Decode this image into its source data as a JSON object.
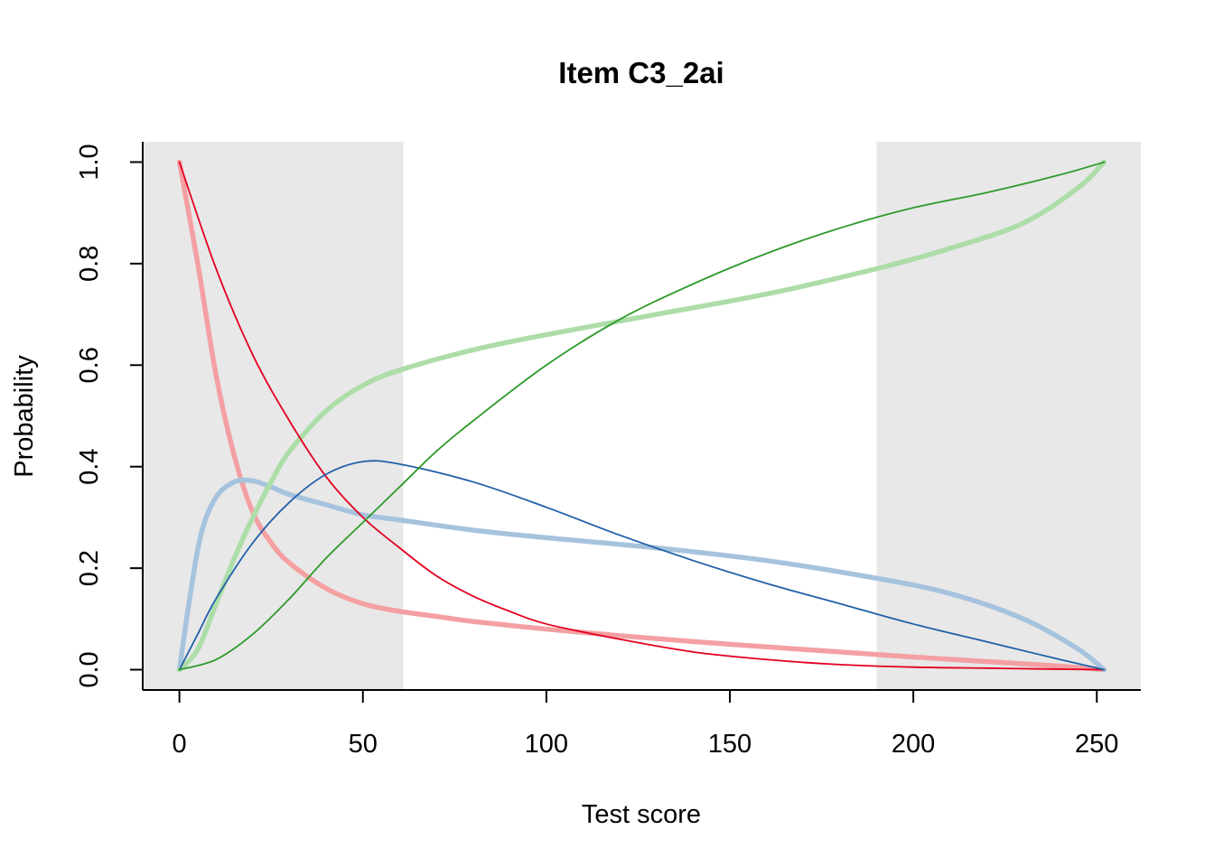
{
  "chart_data": {
    "type": "line",
    "title": "Item C3_2ai",
    "xlabel": "Test score",
    "ylabel": "Probability",
    "xlim": [
      -10,
      262
    ],
    "ylim": [
      -0.04,
      1.04
    ],
    "x_ticks": [
      0,
      50,
      100,
      150,
      200,
      250
    ],
    "y_ticks": [
      0.0,
      0.2,
      0.4,
      0.6,
      0.8,
      1.0
    ],
    "x_tick_labels": [
      "0",
      "50",
      "100",
      "150",
      "200",
      "250"
    ],
    "y_tick_labels": [
      "0.0",
      "0.2",
      "0.4",
      "0.6",
      "0.8",
      "1.0"
    ],
    "shaded_regions": [
      {
        "x_start": -10,
        "x_end": 61,
        "color": "#e8e8e8"
      },
      {
        "x_start": 190,
        "x_end": 262,
        "color": "#e8e8e8"
      }
    ],
    "series": [
      {
        "color": "#f4a0a3",
        "width": "thick",
        "x": [
          0,
          5,
          10,
          15,
          20,
          25,
          30,
          40,
          50,
          60,
          70,
          80,
          100,
          120,
          150,
          180,
          200,
          220,
          240,
          252
        ],
        "y": [
          1.0,
          0.8,
          0.58,
          0.42,
          0.31,
          0.25,
          0.21,
          0.16,
          0.13,
          0.115,
          0.105,
          0.095,
          0.08,
          0.067,
          0.05,
          0.035,
          0.025,
          0.016,
          0.007,
          0.0
        ]
      },
      {
        "color": "#a6c3de",
        "width": "thick",
        "x": [
          0,
          3,
          6,
          10,
          15,
          20,
          25,
          30,
          40,
          50,
          60,
          80,
          100,
          130,
          160,
          190,
          210,
          230,
          245,
          252
        ],
        "y": [
          0.0,
          0.15,
          0.27,
          0.34,
          0.37,
          0.372,
          0.36,
          0.345,
          0.325,
          0.305,
          0.295,
          0.275,
          0.26,
          0.24,
          0.215,
          0.18,
          0.15,
          0.1,
          0.04,
          0.0
        ]
      },
      {
        "color": "#addda8",
        "width": "thick",
        "x": [
          0,
          5,
          10,
          15,
          20,
          25,
          30,
          40,
          50,
          60,
          80,
          100,
          130,
          160,
          190,
          210,
          230,
          245,
          252
        ],
        "y": [
          0.0,
          0.04,
          0.13,
          0.22,
          0.3,
          0.37,
          0.43,
          0.51,
          0.56,
          0.59,
          0.63,
          0.66,
          0.7,
          0.74,
          0.79,
          0.83,
          0.88,
          0.95,
          1.0
        ]
      },
      {
        "color": "#e3001f",
        "width": "thin",
        "x": [
          0,
          10,
          20,
          30,
          40,
          50,
          60,
          70,
          80,
          90,
          100,
          120,
          140,
          160,
          180,
          200,
          220,
          240,
          252
        ],
        "y": [
          1.0,
          0.79,
          0.62,
          0.49,
          0.38,
          0.3,
          0.24,
          0.185,
          0.145,
          0.115,
          0.09,
          0.06,
          0.035,
          0.02,
          0.01,
          0.005,
          0.003,
          0.001,
          0.0
        ]
      },
      {
        "color": "#2060a8",
        "width": "thin",
        "x": [
          0,
          5,
          10,
          20,
          30,
          40,
          50,
          60,
          80,
          100,
          120,
          140,
          160,
          180,
          200,
          220,
          240,
          252
        ],
        "y": [
          0.0,
          0.07,
          0.14,
          0.25,
          0.33,
          0.385,
          0.41,
          0.405,
          0.37,
          0.32,
          0.265,
          0.215,
          0.17,
          0.13,
          0.09,
          0.055,
          0.02,
          0.0
        ]
      },
      {
        "color": "#2e9a2a",
        "width": "thin",
        "x": [
          0,
          10,
          20,
          30,
          40,
          50,
          60,
          70,
          80,
          100,
          120,
          140,
          160,
          180,
          200,
          220,
          240,
          252
        ],
        "y": [
          0.0,
          0.02,
          0.07,
          0.14,
          0.22,
          0.29,
          0.36,
          0.43,
          0.49,
          0.6,
          0.69,
          0.76,
          0.82,
          0.87,
          0.91,
          0.94,
          0.975,
          1.0
        ]
      }
    ]
  }
}
